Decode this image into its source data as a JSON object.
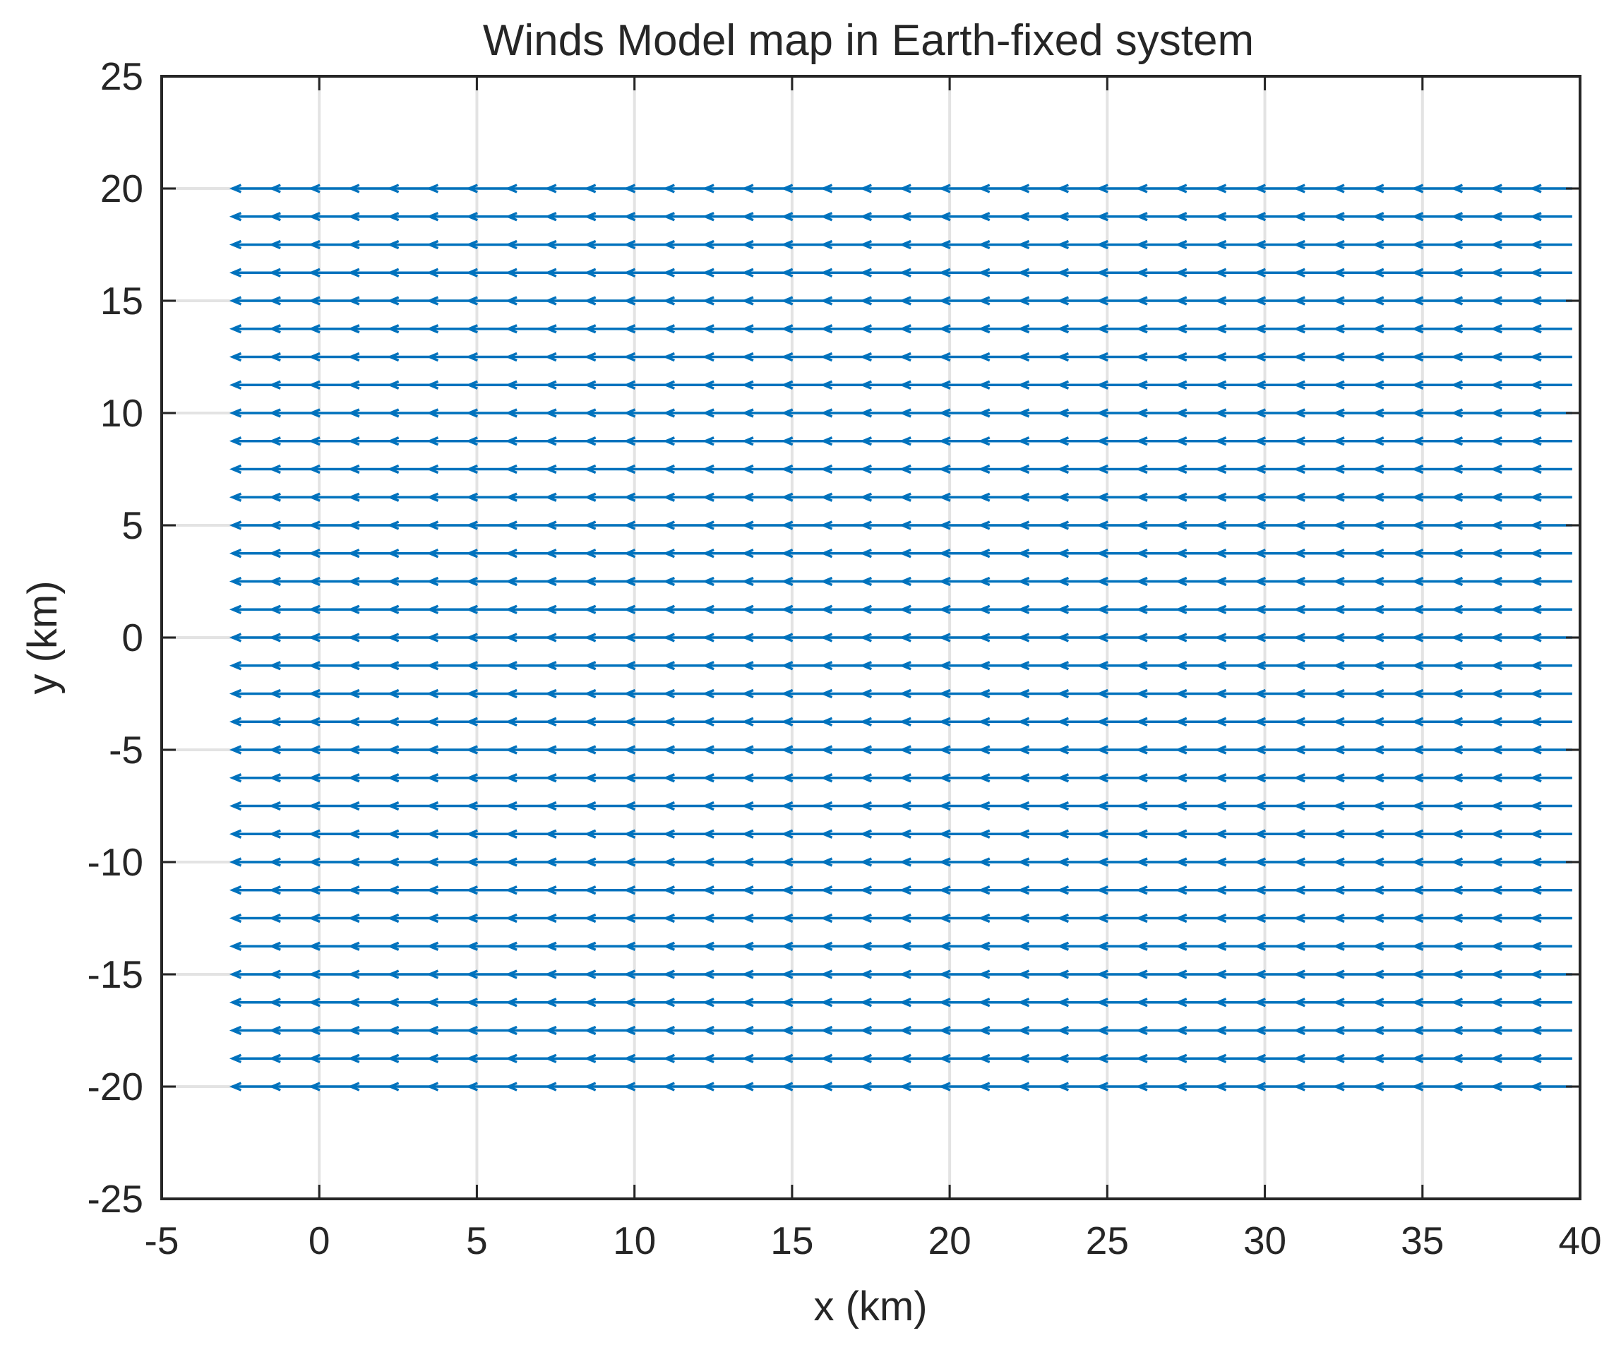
{
  "chart_data": {
    "type": "quiver",
    "title": "Winds Model map in Earth-fixed system",
    "xlabel": "x (km)",
    "ylabel": "y (km)",
    "xlim": [
      -5,
      40
    ],
    "ylim": [
      -25,
      25
    ],
    "xticks": [
      -5,
      0,
      5,
      10,
      15,
      20,
      25,
      30,
      35,
      40
    ],
    "yticks": [
      -25,
      -20,
      -15,
      -10,
      -5,
      0,
      5,
      10,
      15,
      20,
      25
    ],
    "grid": true,
    "series_color": "#0072bd",
    "wind_direction": "toward -x (westward)",
    "grid_x": {
      "start": -1.5,
      "stop": 40,
      "step": 1.25
    },
    "grid_y": {
      "start": -20,
      "stop": 20,
      "step": 1.25
    },
    "arrow_u": -1.25,
    "arrow_v": 0
  }
}
